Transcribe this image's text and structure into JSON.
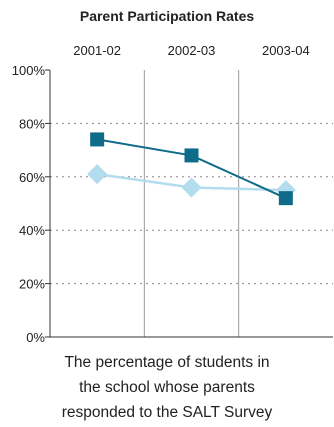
{
  "chart_data": {
    "type": "line",
    "title": "Parent Participation Rates",
    "categories": [
      "2001-02",
      "2002-03",
      "2003-04"
    ],
    "y_ticks": [
      "100%",
      "80%",
      "60%",
      "40%",
      "20%",
      "0%"
    ],
    "ylim": [
      0,
      100
    ],
    "y_unit": "%",
    "grid": "dotted horizontal, solid vertical dividers",
    "legend": "none",
    "series": [
      {
        "values": [
          74,
          68,
          52
        ],
        "marker": "square",
        "color": "#0e6b8a"
      },
      {
        "values": [
          61,
          56,
          55
        ],
        "marker": "diamond",
        "color": "#b3dcef"
      }
    ]
  },
  "caption": {
    "lines": [
      "The percentage of students in",
      "the school whose parents",
      "responded to the SALT Survey"
    ]
  }
}
